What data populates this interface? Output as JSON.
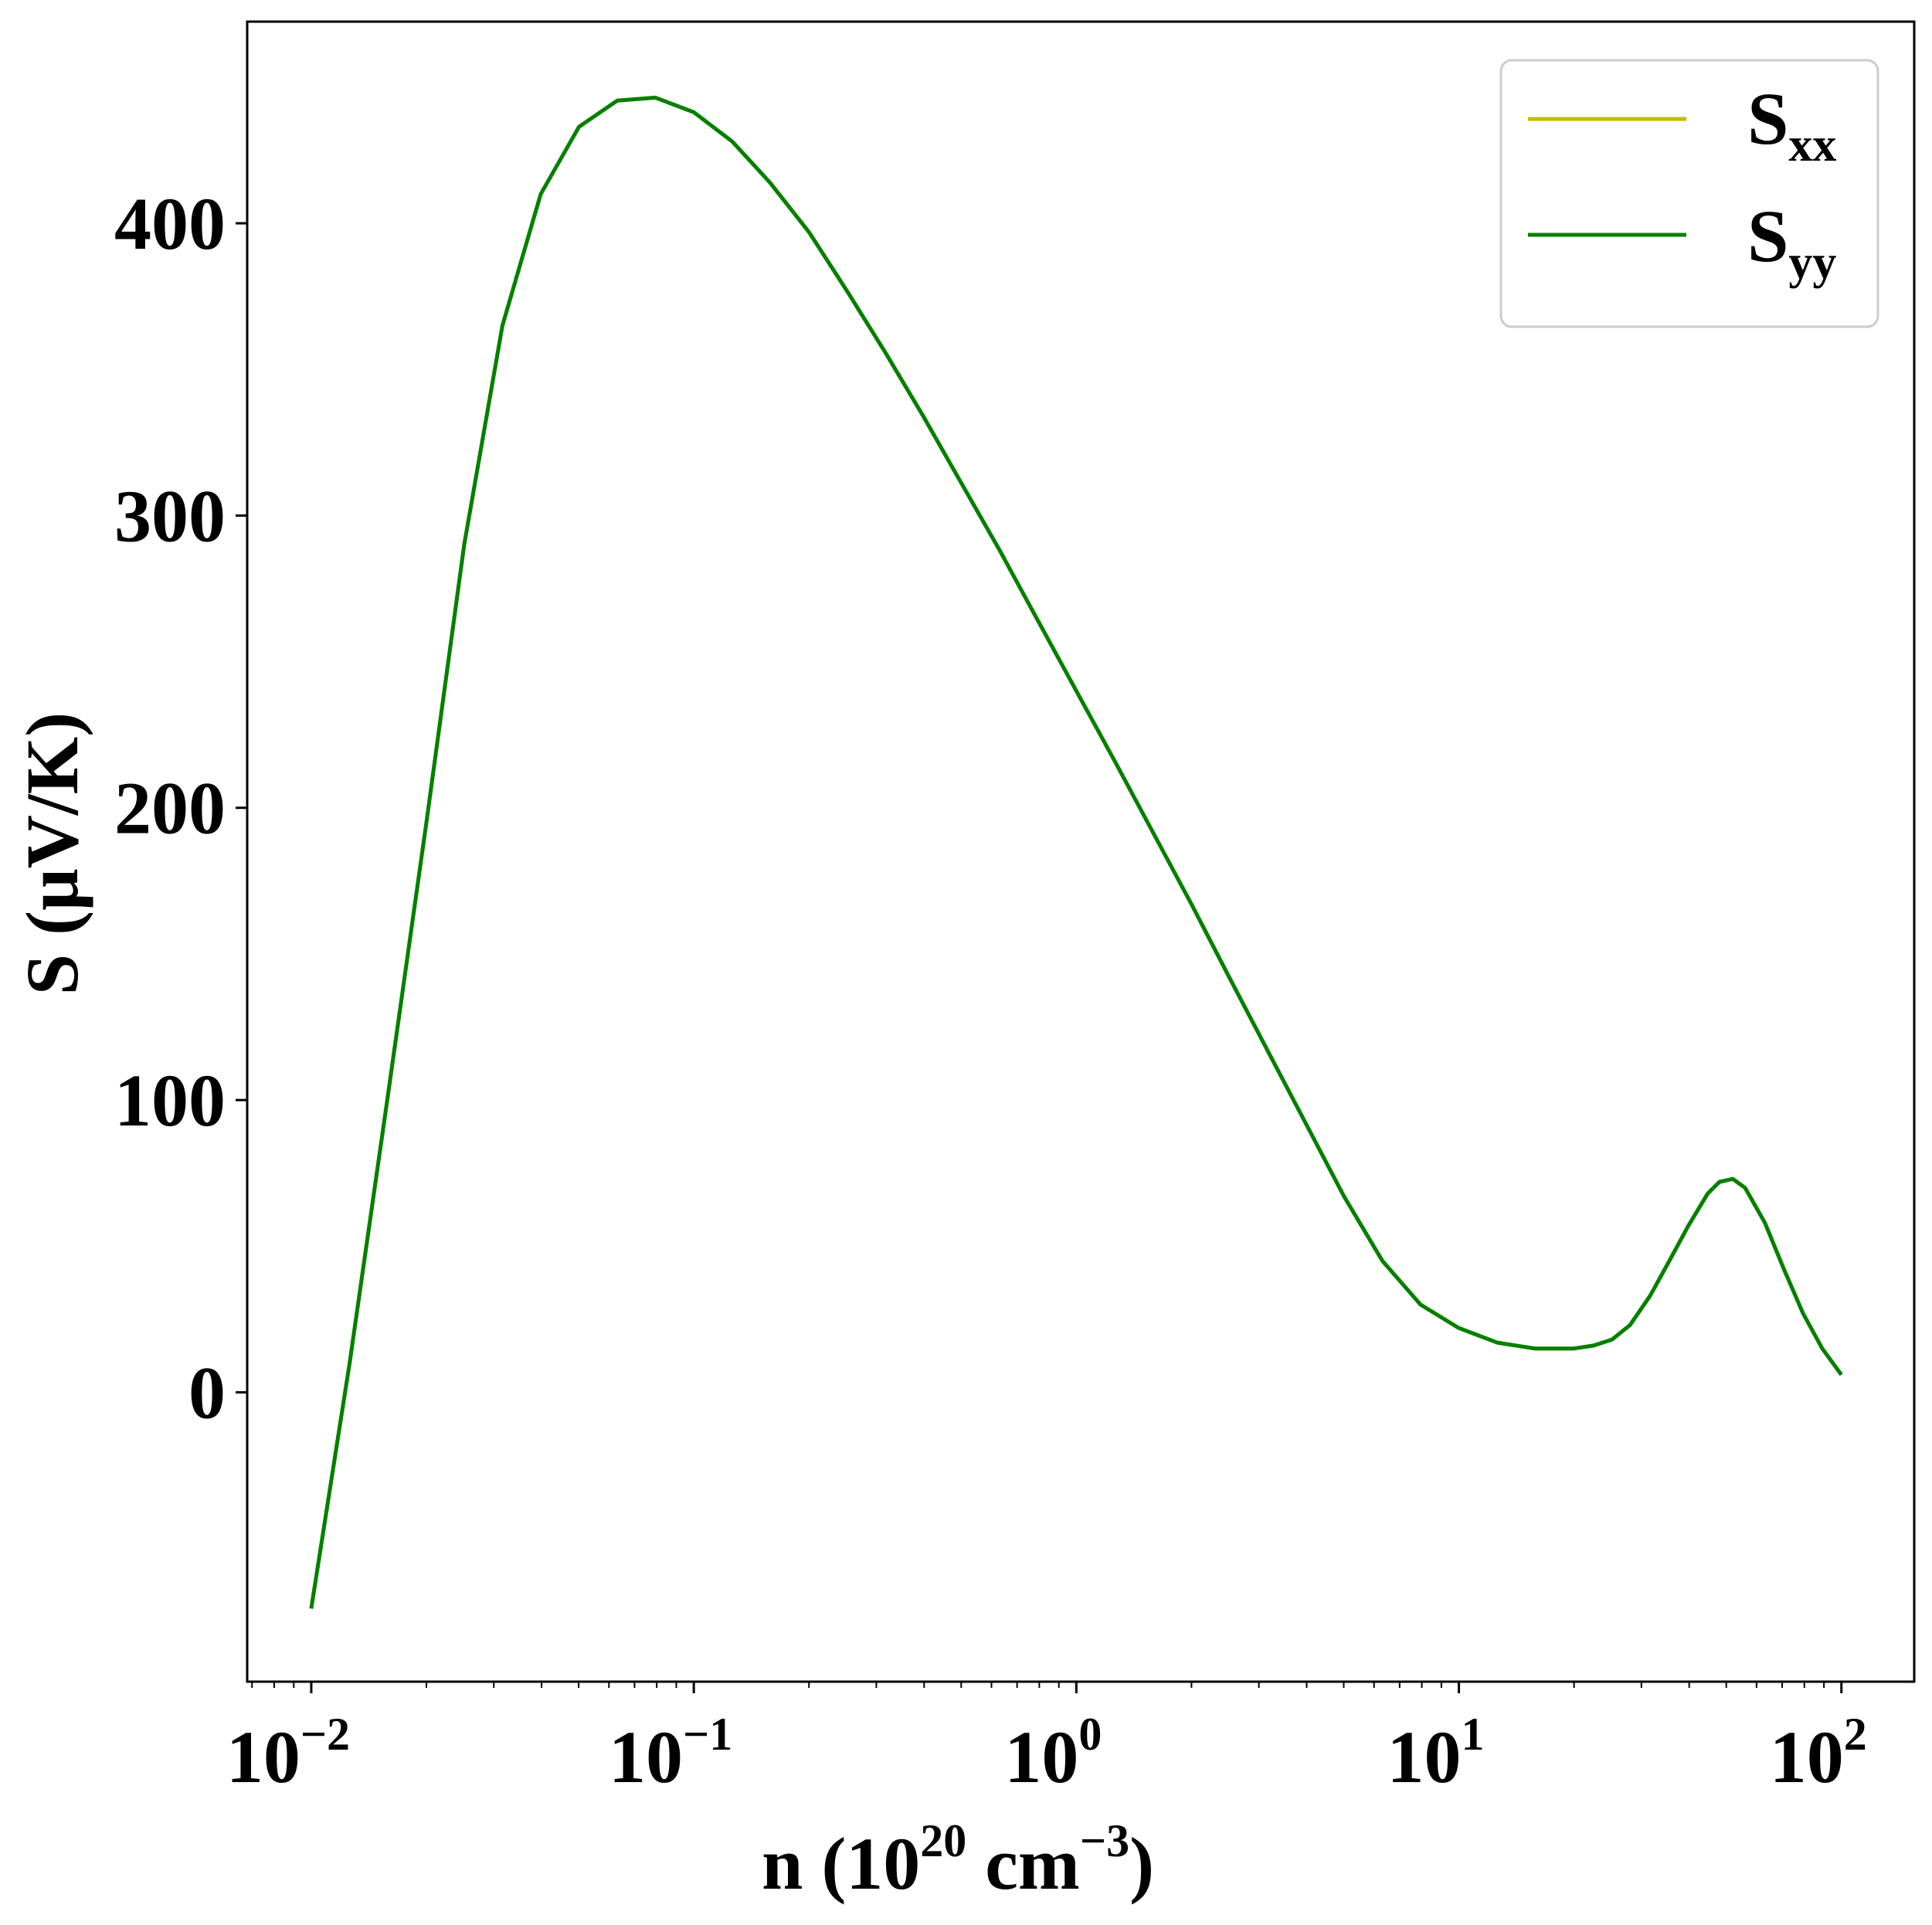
{
  "chart_data": {
    "type": "line",
    "xscale": "log",
    "xlim": [
      0.0068,
      155
    ],
    "ylim": [
      -99,
      469
    ],
    "xlabel": {
      "base": "n (10",
      "sup1": "20",
      "mid": " cm",
      "sup2": "−3",
      "end": ")"
    },
    "ylabel": "S (μV/K)",
    "x_ticks": [
      {
        "value": 0.01,
        "base": "10",
        "exp": "−2"
      },
      {
        "value": 0.1,
        "base": "10",
        "exp": "−1"
      },
      {
        "value": 1,
        "base": "10",
        "exp": "0"
      },
      {
        "value": 10,
        "base": "10",
        "exp": "1"
      },
      {
        "value": 100,
        "base": "10",
        "exp": "2"
      }
    ],
    "y_ticks": [
      0,
      100,
      200,
      300,
      400
    ],
    "grid": false,
    "legend_position": "top-right",
    "series": [
      {
        "name": "S",
        "sub": "xx",
        "color": "#bfbf00",
        "x": [
          0.01,
          0.0126,
          0.0158,
          0.02,
          0.0251,
          0.0316,
          0.0398,
          0.0501,
          0.0631,
          0.0794,
          0.1,
          0.126,
          0.158,
          0.2,
          0.251,
          0.316,
          0.398,
          0.501,
          0.631,
          0.794,
          1.0,
          1.26,
          1.58,
          2.0,
          2.51,
          3.16,
          3.98,
          5.01,
          6.31,
          7.94,
          10.0,
          12.6,
          15.8,
          20.0,
          22.5,
          25.1,
          28.0,
          31.6,
          35.5,
          39.8,
          44.7,
          48.0,
          52.0,
          56.0,
          63.1,
          70.8,
          79.4,
          89.1,
          100.0
        ],
        "y": [
          -74,
          10,
          100,
          195,
          290,
          365,
          410,
          433,
          442,
          443,
          438,
          428,
          414,
          397,
          377,
          356,
          334,
          311,
          288,
          264,
          240,
          216,
          192,
          167,
          142,
          117,
          92,
          67,
          45,
          30,
          22,
          17,
          15,
          15,
          16,
          18,
          23,
          33,
          45,
          57,
          68,
          72,
          73,
          70,
          58,
          42,
          27,
          15,
          6
        ]
      },
      {
        "name": "S",
        "sub": "yy",
        "color": "#008000",
        "x": [
          0.01,
          0.0126,
          0.0158,
          0.02,
          0.0251,
          0.0316,
          0.0398,
          0.0501,
          0.0631,
          0.0794,
          0.1,
          0.126,
          0.158,
          0.2,
          0.251,
          0.316,
          0.398,
          0.501,
          0.631,
          0.794,
          1.0,
          1.26,
          1.58,
          2.0,
          2.51,
          3.16,
          3.98,
          5.01,
          6.31,
          7.94,
          10.0,
          12.6,
          15.8,
          20.0,
          22.5,
          25.1,
          28.0,
          31.6,
          35.5,
          39.8,
          44.7,
          48.0,
          52.0,
          56.0,
          63.1,
          70.8,
          79.4,
          89.1,
          100.0
        ],
        "y": [
          -74,
          10,
          100,
          195,
          290,
          365,
          410,
          433,
          442,
          443,
          438,
          428,
          414,
          397,
          377,
          356,
          334,
          311,
          288,
          264,
          240,
          216,
          192,
          167,
          142,
          117,
          92,
          67,
          45,
          30,
          22,
          17,
          15,
          15,
          16,
          18,
          23,
          33,
          45,
          57,
          68,
          72,
          73,
          70,
          58,
          42,
          27,
          15,
          6
        ]
      }
    ]
  }
}
